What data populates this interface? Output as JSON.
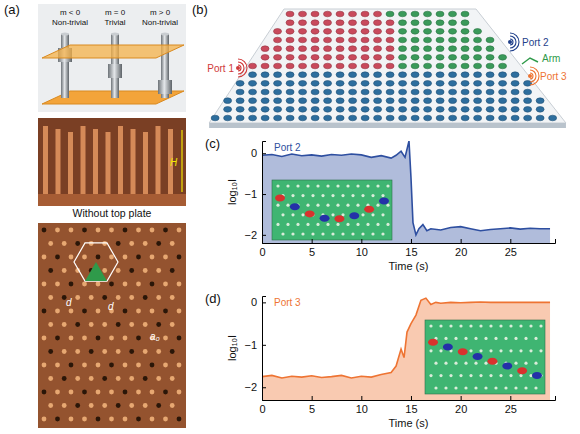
{
  "panels": {
    "a": {
      "letter": "(a)",
      "phases": [
        {
          "sign": "m < 0",
          "phase": "Non-trivial"
        },
        {
          "sign": "m = 0",
          "phase": "Trivial"
        },
        {
          "sign": "m > 0",
          "phase": "Non-trivial"
        }
      ],
      "photo_label": "H",
      "caption": "Without top plate",
      "lattice_labels": [
        "d",
        "d",
        "a₀"
      ]
    },
    "b": {
      "letter": "(b)",
      "port1": "Port 1",
      "port2": "Port 2",
      "arm": "Arm",
      "port3": "Port 3"
    },
    "c": {
      "letter": "(c)"
    },
    "d": {
      "letter": "(d)"
    }
  },
  "chart_data": [
    {
      "type": "area",
      "title": "Port 2",
      "x_label": "Time (s)",
      "y_label": "log₁₀I",
      "color": "#2e4fa0",
      "x": [
        0,
        1,
        2,
        3,
        4,
        5,
        6,
        7,
        8,
        9,
        10,
        11,
        12,
        13,
        13.5,
        14,
        14.4,
        14.8,
        15.0,
        15.2,
        15.5,
        15.8,
        16.2,
        16.6,
        17,
        18,
        19,
        20,
        21,
        22,
        23,
        24,
        25,
        26,
        27,
        28,
        29
      ],
      "values": [
        -0.05,
        -0.03,
        -0.08,
        -0.02,
        -0.06,
        -0.04,
        -0.07,
        -0.03,
        -0.05,
        -0.02,
        -0.04,
        -0.1,
        -0.06,
        -0.12,
        -0.05,
        0.05,
        -0.1,
        0.3,
        -0.6,
        -1.7,
        -2.0,
        -1.85,
        -1.75,
        -1.9,
        -1.85,
        -1.88,
        -1.82,
        -1.8,
        -1.85,
        -1.9,
        -1.87,
        -1.85,
        -1.83,
        -1.86,
        -1.84,
        -1.85,
        -1.85
      ],
      "xlim": [
        0,
        29.5
      ],
      "xticks": [
        0,
        5,
        10,
        15,
        20,
        25
      ],
      "ylim": [
        -2.2,
        0.3
      ],
      "yticks": [
        0,
        {
          "value": -1,
          "label": "−1"
        },
        {
          "value": -2,
          "label": "−2"
        }
      ]
    },
    {
      "type": "area",
      "title": "Port 3",
      "x_label": "Time (s)",
      "y_label": "log₁₀I",
      "color": "#ee7433",
      "x": [
        0,
        1,
        2,
        3,
        4,
        5,
        6,
        7,
        8,
        9,
        10,
        11,
        12,
        13,
        13.5,
        14,
        14.3,
        14.6,
        15,
        15.5,
        16,
        16.5,
        17,
        17.5,
        18,
        19,
        20,
        21,
        22,
        23,
        24,
        25,
        26,
        27,
        28,
        29
      ],
      "values": [
        -1.75,
        -1.72,
        -1.78,
        -1.74,
        -1.76,
        -1.73,
        -1.77,
        -1.75,
        -1.72,
        -1.78,
        -1.74,
        -1.76,
        -1.7,
        -1.65,
        -1.5,
        -1.1,
        -1.3,
        -0.7,
        -0.5,
        -0.3,
        0.05,
        0.1,
        -0.05,
        0.0,
        -0.02,
        0,
        -0.01,
        0,
        0.01,
        0,
        0,
        0,
        0,
        0,
        0,
        0
      ],
      "xlim": [
        0,
        29.5
      ],
      "xticks": [
        0,
        5,
        10,
        15,
        20,
        25
      ],
      "ylim": [
        -2.3,
        0.15
      ],
      "yticks": [
        0,
        {
          "value": -1,
          "label": "−1"
        },
        {
          "value": -2,
          "label": "−2"
        }
      ]
    }
  ]
}
